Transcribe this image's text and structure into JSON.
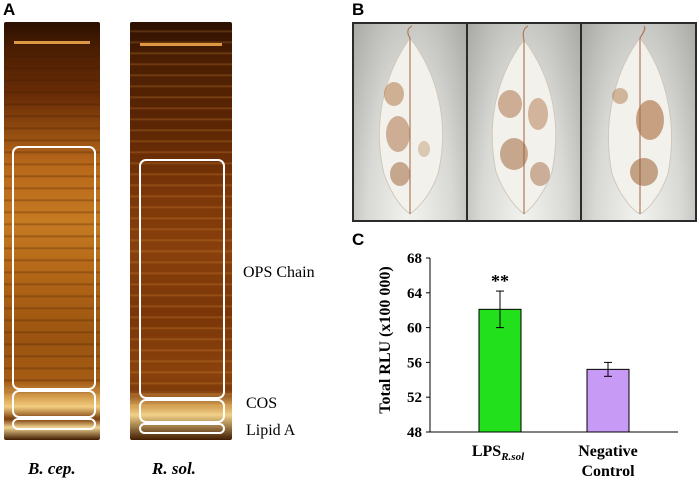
{
  "panels": {
    "a": "A",
    "b": "B",
    "c": "C"
  },
  "gel": {
    "lanes": [
      "B. cep.",
      "R. sol."
    ],
    "band_labels": {
      "ops": "OPS Chain",
      "cos": "COS",
      "lipid": "Lipid A"
    }
  },
  "colors": {
    "gel_dark": "#3a1600",
    "gel_glow": "#d6881f",
    "bar_lps": "#22e01c",
    "bar_neg": "#c79af5"
  },
  "chart_data": {
    "type": "bar",
    "categories": [
      "LPS_R.sol",
      "Negative Control"
    ],
    "category_labels": [
      {
        "main": "LPS",
        "sub": "R.sol"
      },
      {
        "main": "Negative",
        "line2": "Control"
      }
    ],
    "values": [
      62.1,
      55.2
    ],
    "errors": [
      2.1,
      0.8
    ],
    "annotations": [
      "**",
      ""
    ],
    "ylabel": "Total RLU (x100 000)",
    "ylim": [
      48,
      68
    ],
    "yticks": [
      48,
      52,
      56,
      60,
      64,
      68
    ],
    "grid": false
  }
}
